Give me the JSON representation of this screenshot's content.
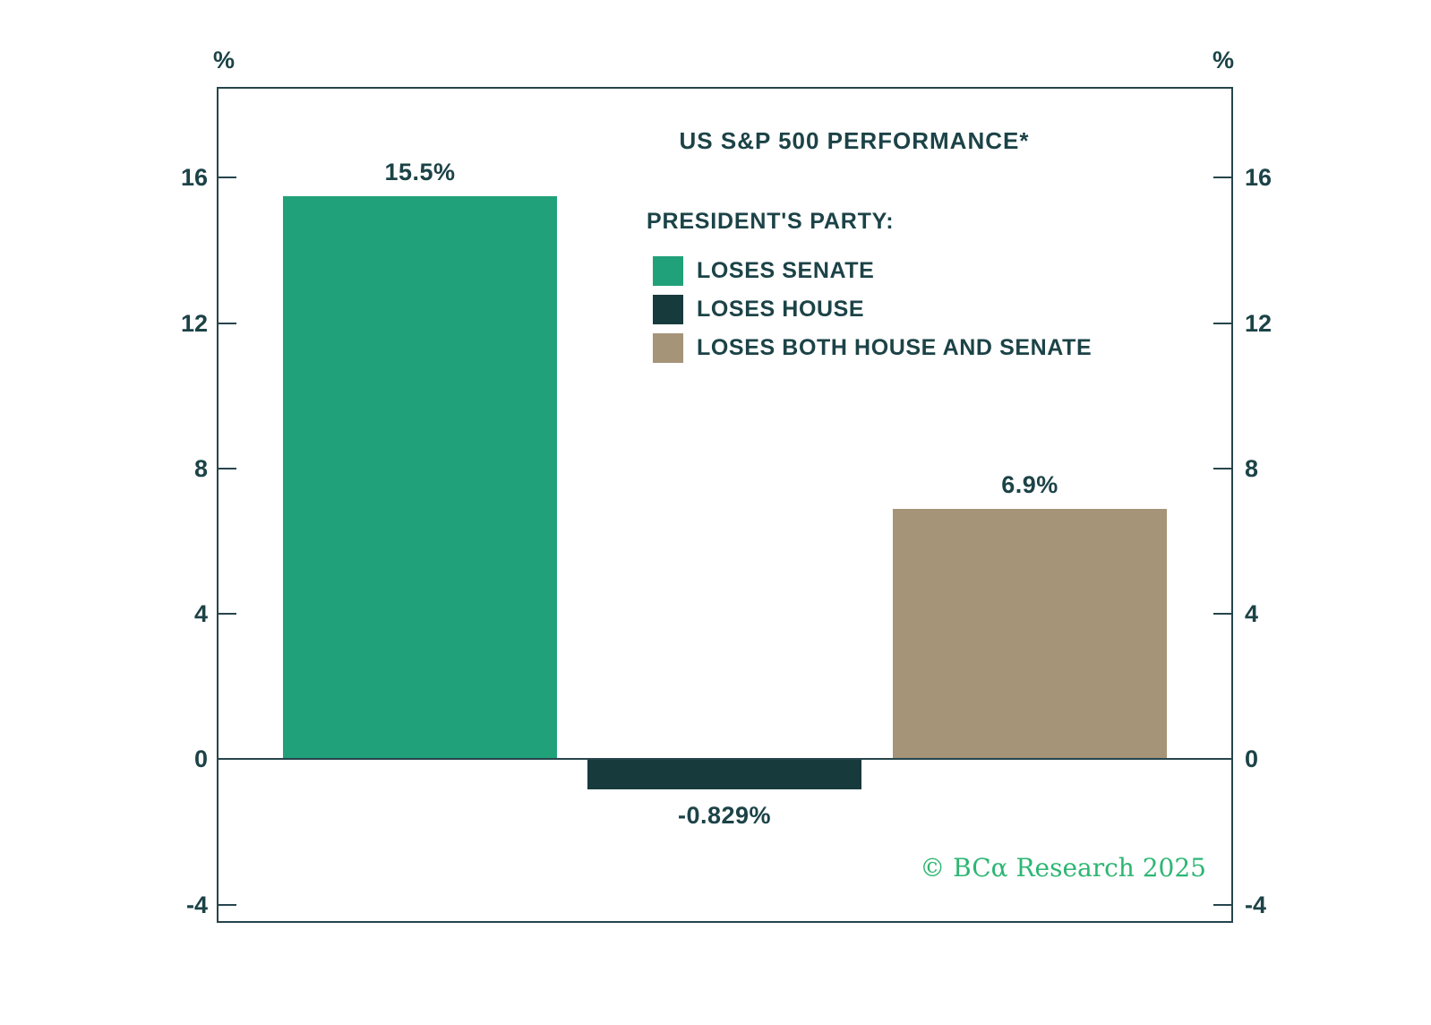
{
  "chart_data": {
    "type": "bar",
    "title": "US S&P 500 PERFORMANCE*",
    "legend_title": "PRESIDENT'S PARTY:",
    "categories": [
      "LOSES SENATE",
      "LOSES HOUSE",
      "LOSES BOTH HOUSE AND SENATE"
    ],
    "values": [
      15.5,
      -0.829,
      6.9
    ],
    "value_labels": [
      "15.5%",
      "-0.829%",
      "6.9%"
    ],
    "colors": [
      "#21A179",
      "#173A3D",
      "#A59478"
    ],
    "axis_unit": "%",
    "yticks": [
      16,
      12,
      8,
      4,
      0,
      -4
    ],
    "ylim": [
      -4.5,
      18.5
    ],
    "grid": false,
    "legend_position": "inside-upper-right",
    "copyright": "© BCα Research 2025"
  },
  "theme": {
    "text_color": "#1C4347",
    "axis_color": "#26454C",
    "copyright_color": "#2DB673",
    "background": "#FFFFFF"
  }
}
